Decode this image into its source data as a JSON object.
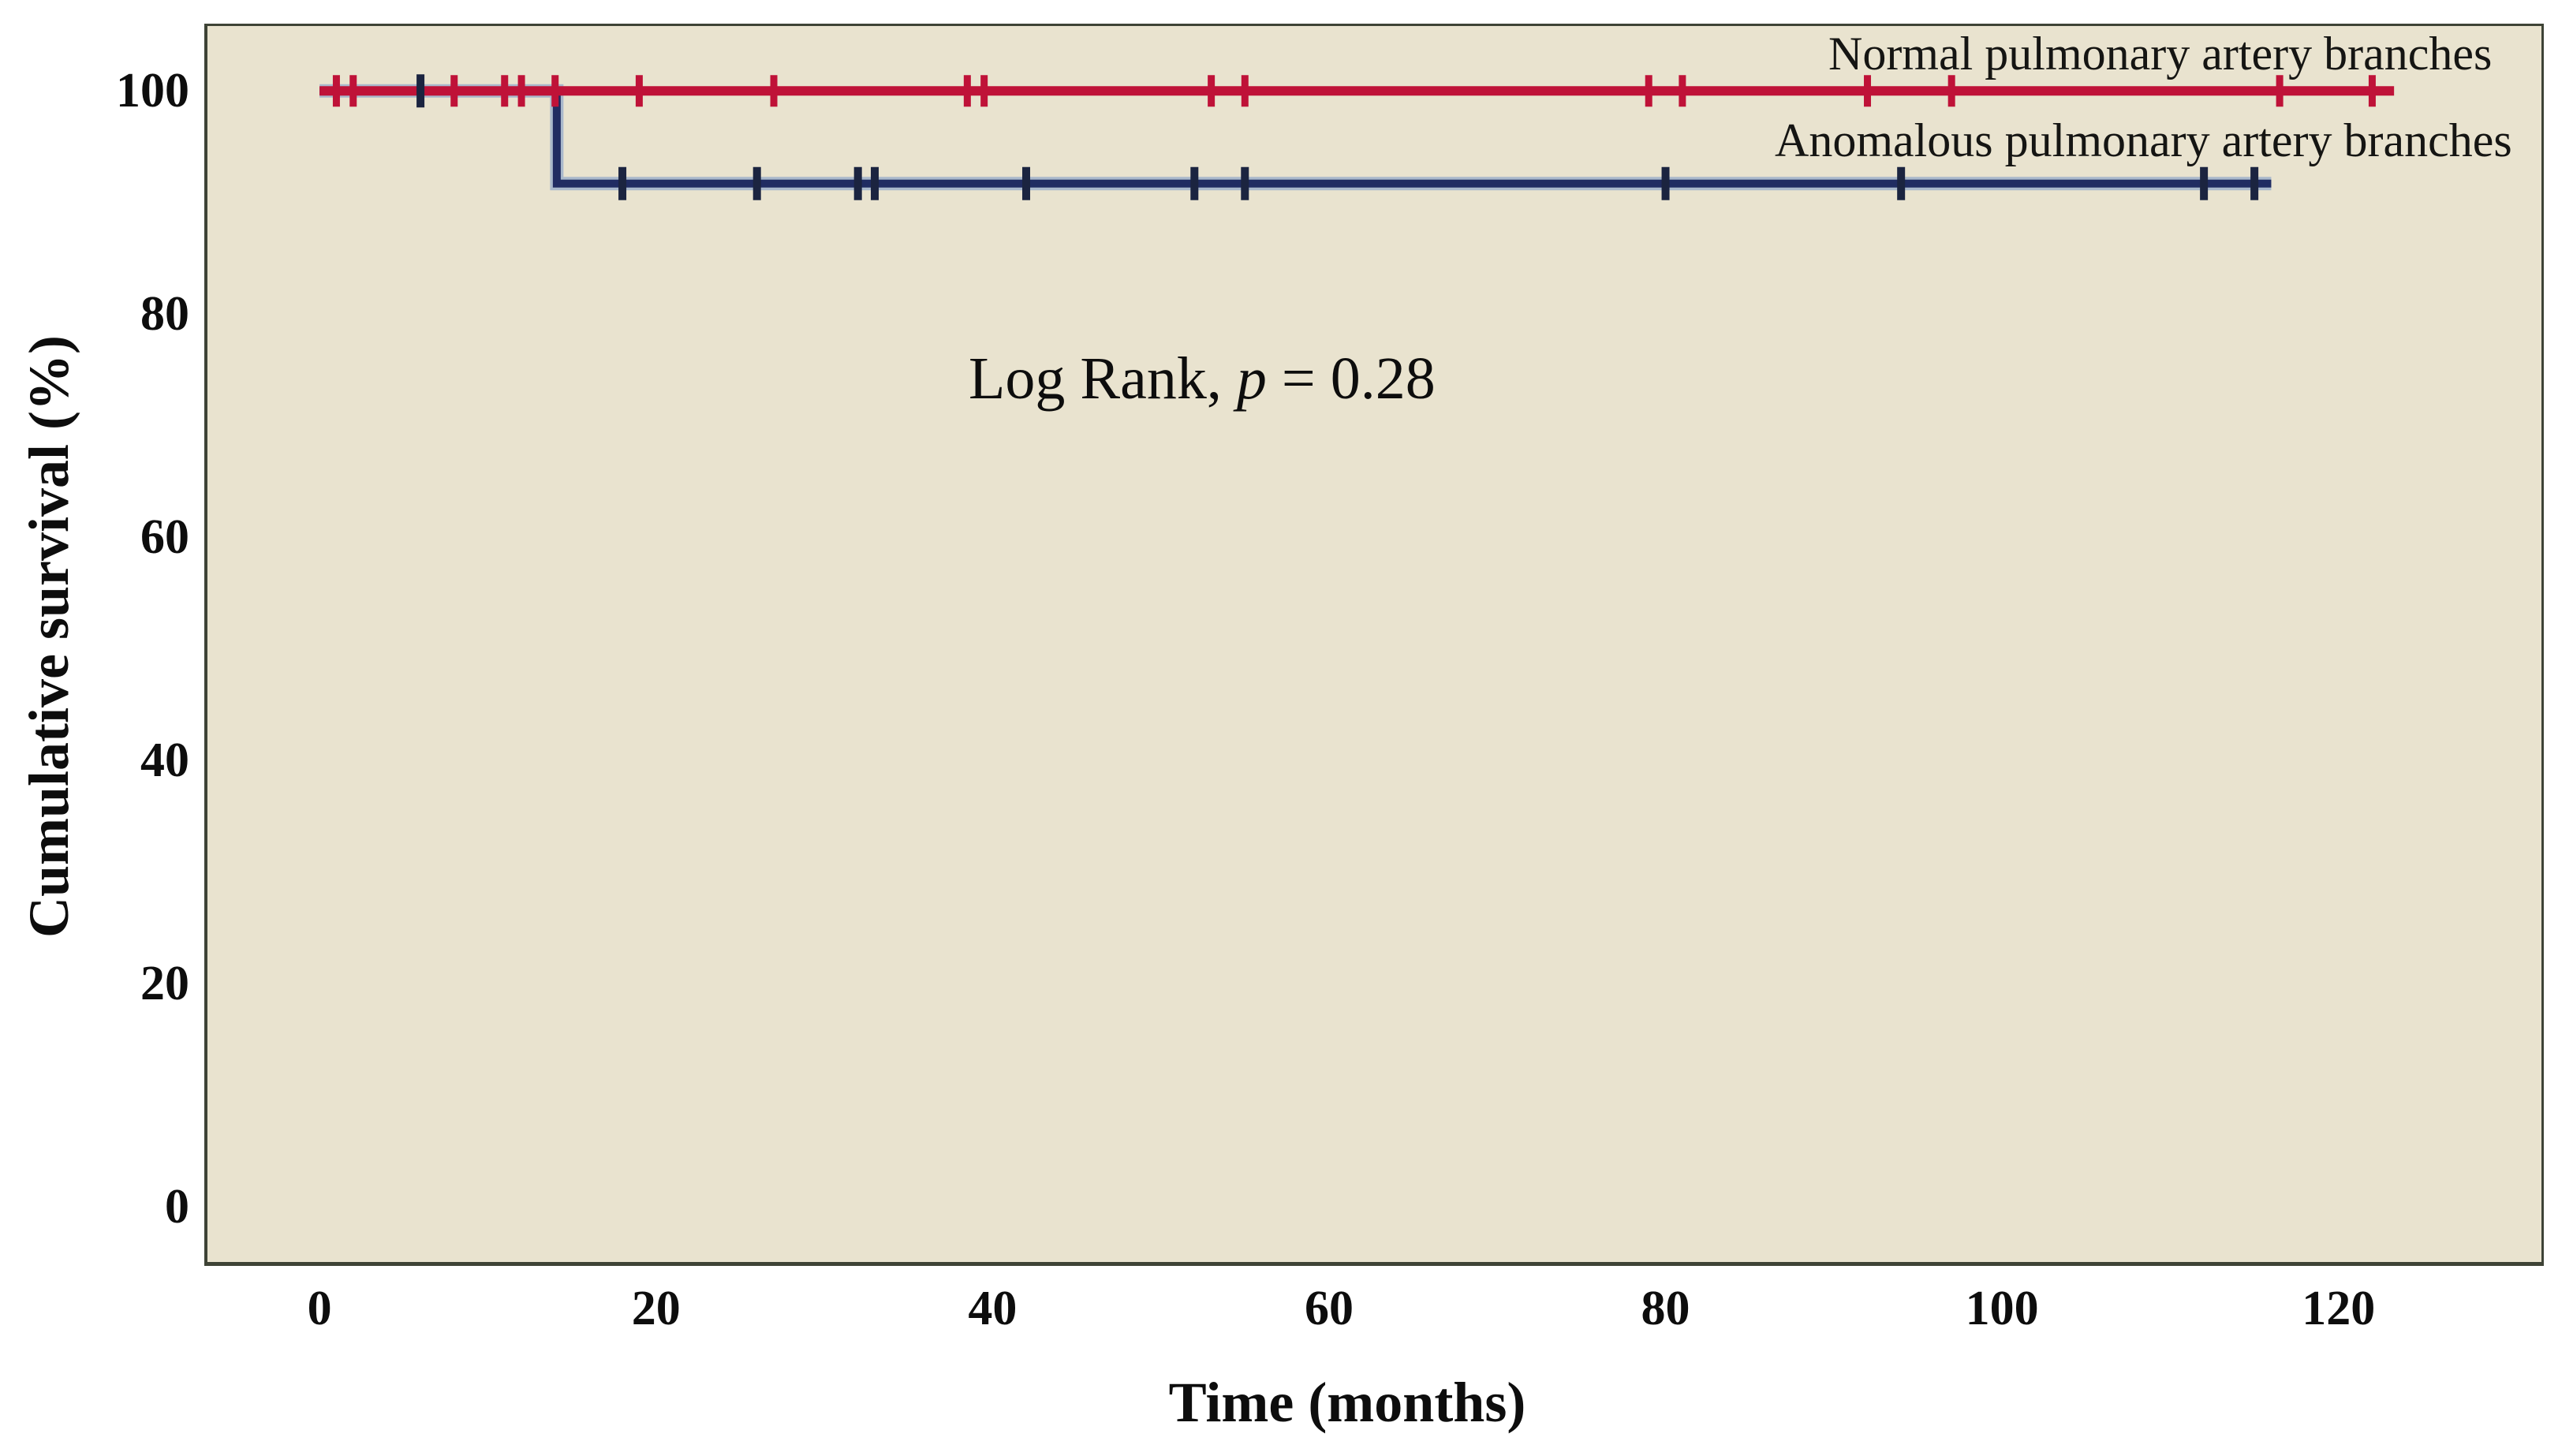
{
  "figure": {
    "background": "#ffffff"
  },
  "chart_data": {
    "type": "line",
    "subtype": "kaplan-meier-step-curves",
    "title": "",
    "xlabel": "Time (months)",
    "ylabel": "Cumulative survival (%)",
    "x_ticks": [
      0,
      20,
      40,
      60,
      80,
      100,
      120
    ],
    "y_ticks": [
      100,
      80,
      60,
      40,
      20,
      0
    ],
    "xlim": [
      -6.85,
      132.2
    ],
    "ylim": [
      -5.3,
      106.03
    ],
    "grid": false,
    "legend_position": "top-right-inside",
    "plot_background": "#e9e3cf",
    "frame_color": "#3e4336",
    "annotation": {
      "prefix": "Log Rank, ",
      "p": "p",
      "suffix": " = 0.28"
    },
    "series": [
      {
        "name": "Normal pulmonary artery branches",
        "color": "#bf1238",
        "line_width": 12,
        "steps": [
          [
            0,
            100
          ],
          [
            123.3,
            100
          ]
        ],
        "censors": [
          [
            1,
            100
          ],
          [
            2,
            100
          ],
          [
            8,
            100
          ],
          [
            11,
            100
          ],
          [
            12,
            100
          ],
          [
            14,
            100
          ],
          [
            19,
            100
          ],
          [
            27,
            100
          ],
          [
            38.5,
            100
          ],
          [
            39.5,
            100
          ],
          [
            53,
            100
          ],
          [
            55,
            100
          ],
          [
            79,
            100
          ],
          [
            81,
            100
          ],
          [
            92,
            100
          ],
          [
            97,
            100
          ],
          [
            116.5,
            100
          ],
          [
            122,
            100
          ]
        ]
      },
      {
        "name": "Anomalous pulmonary artery branches",
        "color": "#202c62",
        "halo_color": "#a9b8cb",
        "censor_color": "#1b2440",
        "line_width": 10,
        "steps": [
          [
            0,
            100
          ],
          [
            14.1,
            100
          ],
          [
            14.1,
            91.7
          ],
          [
            116,
            91.7
          ]
        ],
        "censors": [
          [
            6,
            100
          ],
          [
            18,
            91.7
          ],
          [
            26,
            91.7
          ],
          [
            32,
            91.7
          ],
          [
            33,
            91.7
          ],
          [
            42,
            91.7
          ],
          [
            52,
            91.7
          ],
          [
            55,
            91.7
          ],
          [
            80,
            91.7
          ],
          [
            94,
            91.7
          ],
          [
            112,
            91.7
          ],
          [
            115,
            91.7
          ]
        ]
      }
    ]
  }
}
